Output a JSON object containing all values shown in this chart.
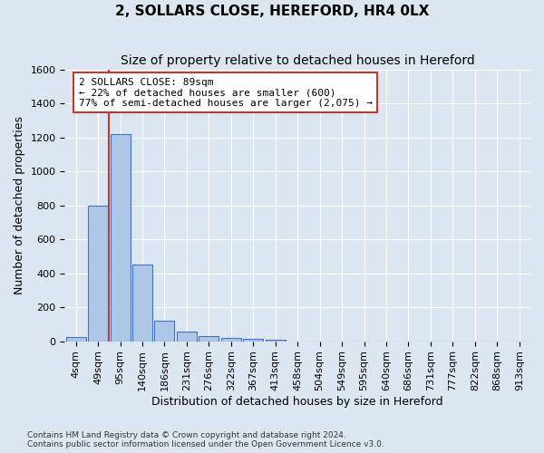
{
  "title": "2, SOLLARS CLOSE, HEREFORD, HR4 0LX",
  "subtitle": "Size of property relative to detached houses in Hereford",
  "xlabel": "Distribution of detached houses by size in Hereford",
  "ylabel": "Number of detached properties",
  "bin_labels": [
    "4sqm",
    "49sqm",
    "95sqm",
    "140sqm",
    "186sqm",
    "231sqm",
    "276sqm",
    "322sqm",
    "367sqm",
    "413sqm",
    "458sqm",
    "504sqm",
    "549sqm",
    "595sqm",
    "640sqm",
    "686sqm",
    "731sqm",
    "777sqm",
    "822sqm",
    "868sqm",
    "913sqm"
  ],
  "bar_values": [
    25,
    800,
    1220,
    450,
    120,
    55,
    30,
    20,
    15,
    10,
    0,
    0,
    0,
    0,
    0,
    0,
    0,
    0,
    0,
    0,
    0
  ],
  "bar_color": "#aec6e8",
  "bar_edge_color": "#4472c4",
  "background_color": "#dce6f1",
  "grid_color": "#ffffff",
  "marker_line_bin_index": 2,
  "marker_color": "#c0392b",
  "annotation_line1": "2 SOLLARS CLOSE: 89sqm",
  "annotation_line2": "← 22% of detached houses are smaller (600)",
  "annotation_line3": "77% of semi-detached houses are larger (2,075) →",
  "annotation_box_color": "#ffffff",
  "annotation_box_edge_color": "#c0392b",
  "ylim": [
    0,
    1600
  ],
  "yticks": [
    0,
    200,
    400,
    600,
    800,
    1000,
    1200,
    1400,
    1600
  ],
  "footer_line1": "Contains HM Land Registry data © Crown copyright and database right 2024.",
  "footer_line2": "Contains public sector information licensed under the Open Government Licence v3.0.",
  "title_fontsize": 11,
  "subtitle_fontsize": 10,
  "xlabel_fontsize": 9,
  "ylabel_fontsize": 9,
  "tick_fontsize": 8,
  "annotation_fontsize": 8
}
